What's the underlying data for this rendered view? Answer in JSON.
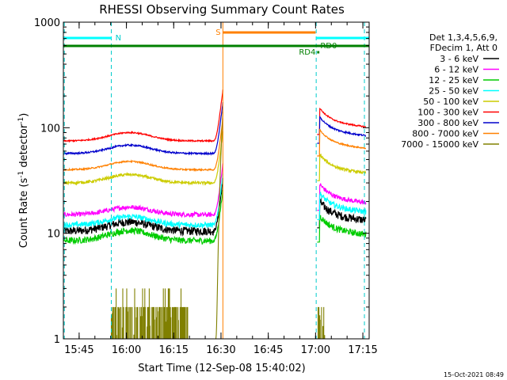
{
  "chart_data": {
    "type": "line",
    "title": "RHESSI Observing Summary Count Rates",
    "xlabel": "Start Time (12-Sep-08 15:40:02)",
    "ylabel_prefix": "Count Rate (s",
    "ylabel_sup": "-1",
    "ylabel_mid": " detector",
    "ylabel_sup2": "-1",
    "ylabel_suffix": ")",
    "x_time_range_min": [
      0,
      97
    ],
    "ylim": [
      1,
      1000
    ],
    "yscale": "log",
    "x_ticks": [
      {
        "label": "15:45",
        "t": 5
      },
      {
        "label": "16:00",
        "t": 20
      },
      {
        "label": "16:15",
        "t": 35
      },
      {
        "label": "16:30",
        "t": 50
      },
      {
        "label": "16:45",
        "t": 65
      },
      {
        "label": "17:00",
        "t": 80
      },
      {
        "label": "17:15",
        "t": 95
      }
    ],
    "y_ticks": [
      {
        "label": "1",
        "v": 1
      },
      {
        "label": "10",
        "v": 10
      },
      {
        "label": "100",
        "v": 100
      },
      {
        "label": "1000",
        "v": 1000
      }
    ],
    "legend_header": [
      "Det 1,3,4,5,6,9,",
      "FDecim 1, Att 0"
    ],
    "series": [
      {
        "name": "3 - 6 keV",
        "color": "#000000",
        "base": 10.5,
        "hump": 0.22,
        "noise": 0.09,
        "post": 15
      },
      {
        "name": "6 - 12 keV",
        "color": "#ff00ff",
        "base": 15,
        "hump": 0.18,
        "noise": 0.05,
        "post": 22
      },
      {
        "name": "12 - 25 keV",
        "color": "#00cc00",
        "base": 8.5,
        "hump": 0.25,
        "noise": 0.07,
        "post": 11
      },
      {
        "name": "25 - 50 keV",
        "color": "#00ffff",
        "base": 12,
        "hump": 0.2,
        "noise": 0.06,
        "post": 18
      },
      {
        "name": "50 - 100 keV",
        "color": "#cccc00",
        "base": 30,
        "hump": 0.2,
        "noise": 0.03,
        "post": 42
      },
      {
        "name": "100 - 300 keV",
        "color": "#ff0000",
        "base": 75,
        "hump": 0.2,
        "noise": 0.015,
        "post": 115
      },
      {
        "name": "300 - 800 keV",
        "color": "#0000cc",
        "base": 57,
        "hump": 0.2,
        "noise": 0.018,
        "post": 95
      },
      {
        "name": "800 - 7000 keV",
        "color": "#ff8000",
        "base": 40,
        "hump": 0.2,
        "noise": 0.015,
        "post": 72
      },
      {
        "name": "7000 - 15000 keV",
        "color": "#808000",
        "base": 1,
        "hump": 0,
        "noise": 0,
        "post": 1
      }
    ],
    "markers": {
      "saa_label": "S",
      "night_label": "N",
      "rd_labels": [
        "RD4",
        "RD0"
      ]
    },
    "footer_date": "15-Oct-2021 08:49"
  }
}
